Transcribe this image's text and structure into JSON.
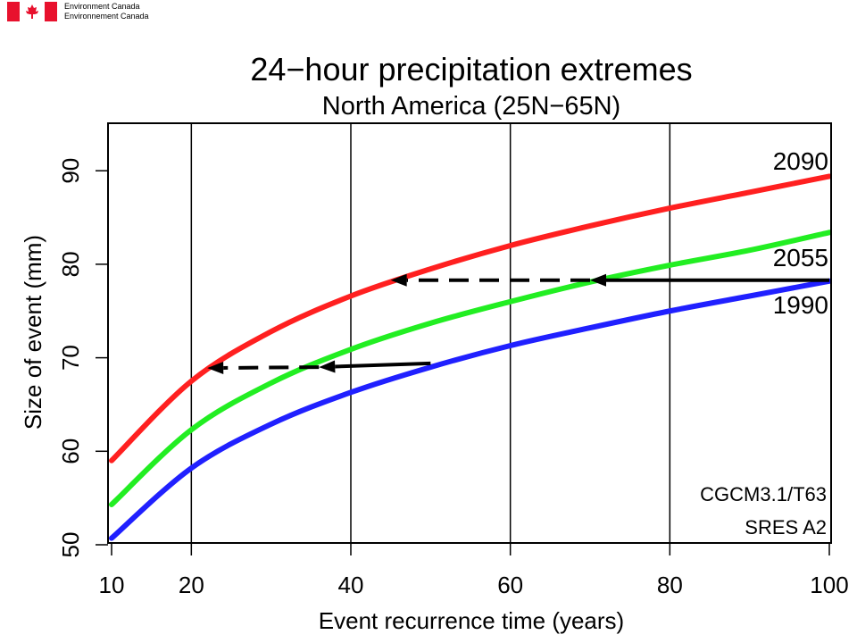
{
  "header": {
    "org_en": "Environment Canada",
    "org_fr": "Environnement Canada",
    "flag_color": "#e8112d"
  },
  "chart_data": {
    "type": "line",
    "title": "24−hour precipitation extremes",
    "subtitle": "North America (25N−65N)",
    "xlabel": "Event recurrence time (years)",
    "ylabel": "Size of event (mm)",
    "xlim": [
      10,
      100
    ],
    "ylim": [
      50,
      95
    ],
    "xticks": [
      10,
      20,
      40,
      60,
      80,
      100
    ],
    "yticks": [
      50,
      60,
      70,
      80,
      90
    ],
    "vgrid": [
      20,
      40,
      60,
      80
    ],
    "x": [
      10,
      20,
      30,
      40,
      50,
      60,
      70,
      80,
      90,
      100
    ],
    "series": [
      {
        "name": "2090",
        "color": "#ff2020",
        "values": [
          59.0,
          67.5,
          72.8,
          76.6,
          79.5,
          82.0,
          84.1,
          86.0,
          87.7,
          89.4
        ]
      },
      {
        "name": "2055",
        "color": "#22ee22",
        "values": [
          54.3,
          62.3,
          67.3,
          70.9,
          73.7,
          76.0,
          78.1,
          79.9,
          81.5,
          83.4
        ]
      },
      {
        "name": "1990",
        "color": "#2020ff",
        "values": [
          50.7,
          58.2,
          62.9,
          66.3,
          69.0,
          71.3,
          73.2,
          75.0,
          76.6,
          78.2
        ]
      }
    ],
    "annotations": [
      {
        "type": "arrow-solid",
        "from": [
          100,
          78.3
        ],
        "to": [
          70,
          78.3
        ]
      },
      {
        "type": "arrow-dashed",
        "from": [
          70,
          78.3
        ],
        "to": [
          45,
          78.3
        ]
      },
      {
        "type": "arrow-solid",
        "from": [
          50,
          69.4
        ],
        "to": [
          36,
          69.0
        ]
      },
      {
        "type": "arrow-dashed",
        "from": [
          36,
          69.0
        ],
        "to": [
          22,
          68.9
        ]
      }
    ],
    "text_annotations": [
      "CGCM3.1/T63",
      "SRES A2"
    ]
  }
}
